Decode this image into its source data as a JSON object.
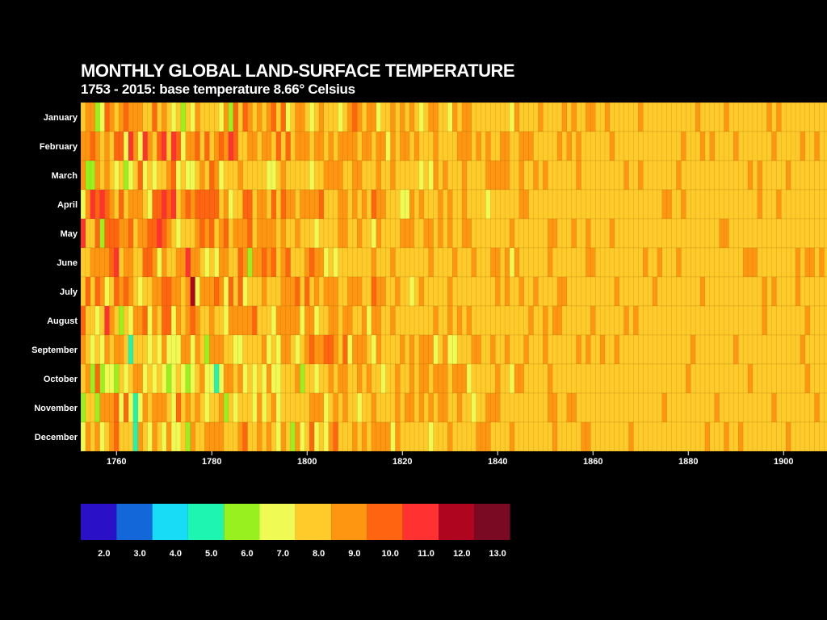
{
  "title": "MONTHLY GLOBAL LAND-SURFACE TEMPERATURE",
  "subtitle": "1753 - 2015: base temperature 8.66° Celsius",
  "chart_data": {
    "type": "heatmap",
    "title": "MONTHLY GLOBAL LAND-SURFACE TEMPERATURE",
    "subtitle": "1753 - 2015: base temperature 8.66° Celsius",
    "base_temperature": 8.66,
    "year_range": [
      1753,
      2015
    ],
    "visible_year_range": [
      1753,
      1908
    ],
    "months": [
      "January",
      "February",
      "March",
      "April",
      "May",
      "June",
      "July",
      "August",
      "September",
      "October",
      "November",
      "December"
    ],
    "x_ticks": [
      1760,
      1780,
      1800,
      1820,
      1840,
      1860,
      1880,
      1900
    ],
    "legend": {
      "colors": [
        "#2a11c8",
        "#1467d9",
        "#18dcf5",
        "#1ef5b0",
        "#98f01f",
        "#effa55",
        "#ffcb2a",
        "#ff9612",
        "#ff6410",
        "#ff3131",
        "#b0051f",
        "#7a0a24"
      ],
      "labels": [
        "2.0",
        "3.0",
        "4.0",
        "5.0",
        "6.0",
        "7.0",
        "8.0",
        "9.0",
        "10.0",
        "11.0",
        "12.0",
        "13.0"
      ]
    },
    "grid": false
  }
}
